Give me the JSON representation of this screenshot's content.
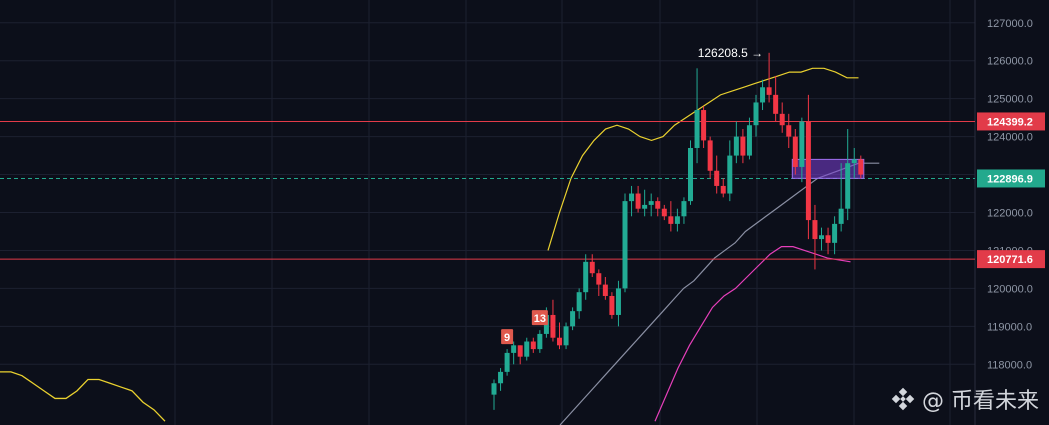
{
  "chart_data": {
    "type": "candlestick",
    "y_ticks": [
      118000,
      119000,
      120000,
      121000,
      122000,
      123000,
      124000,
      125000,
      126000,
      127000
    ],
    "y_tick_labels": [
      "118000.0",
      "119000.0",
      "120000.0",
      "121000.0",
      "122000.0",
      "123000.0",
      "124000.0",
      "125000.0",
      "126000.0",
      "127000.0"
    ],
    "ylim": [
      116400,
      127600
    ],
    "candles": [
      [
        117200,
        117600,
        116800,
        117500
      ],
      [
        117500,
        117900,
        117300,
        117800
      ],
      [
        117800,
        118400,
        117700,
        118300
      ],
      [
        118300,
        118600,
        118000,
        118500
      ],
      [
        118500,
        118500,
        118000,
        118200
      ],
      [
        118200,
        118700,
        118100,
        118600
      ],
      [
        118600,
        118700,
        118300,
        118400
      ],
      [
        118400,
        118900,
        118300,
        118800
      ],
      [
        118800,
        119500,
        118700,
        119300
      ],
      [
        119300,
        119700,
        118600,
        118700
      ],
      [
        118700,
        119100,
        118400,
        118500
      ],
      [
        118500,
        119100,
        118400,
        119000
      ],
      [
        119000,
        119500,
        118900,
        119400
      ],
      [
        119400,
        120000,
        119200,
        119900
      ],
      [
        119900,
        120900,
        119700,
        120700
      ],
      [
        120700,
        120900,
        120300,
        120400
      ],
      [
        120400,
        120500,
        119800,
        120100
      ],
      [
        120100,
        120300,
        119700,
        119800
      ],
      [
        119800,
        119900,
        119200,
        119300
      ],
      [
        119300,
        120200,
        119000,
        120000
      ],
      [
        120000,
        122500,
        119900,
        122300
      ],
      [
        122300,
        122700,
        121900,
        122500
      ],
      [
        122500,
        122700,
        122000,
        122100
      ],
      [
        122100,
        122600,
        121900,
        122200
      ],
      [
        122200,
        122500,
        121900,
        122300
      ],
      [
        122300,
        122400,
        121900,
        122100
      ],
      [
        122100,
        122200,
        121800,
        121900
      ],
      [
        121900,
        122300,
        121500,
        121700
      ],
      [
        121700,
        122100,
        121500,
        121900
      ],
      [
        121900,
        122400,
        121700,
        122300
      ],
      [
        122300,
        123900,
        122200,
        123700
      ],
      [
        123700,
        125800,
        123300,
        124700
      ],
      [
        124700,
        124800,
        123700,
        123900
      ],
      [
        123900,
        124000,
        122900,
        123100
      ],
      [
        123100,
        123500,
        122500,
        122700
      ],
      [
        122700,
        122900,
        122400,
        122500
      ],
      [
        122500,
        123900,
        122300,
        123500
      ],
      [
        123500,
        124400,
        123300,
        124000
      ],
      [
        124000,
        124200,
        123300,
        123500
      ],
      [
        123500,
        124500,
        123400,
        124300
      ],
      [
        124300,
        125100,
        124000,
        124900
      ],
      [
        124900,
        125500,
        124700,
        125300
      ],
      [
        125300,
        126208.5,
        124900,
        125100
      ],
      [
        125100,
        125600,
        124400,
        124600
      ],
      [
        124600,
        124900,
        124100,
        124300
      ],
      [
        124300,
        124600,
        123700,
        124000
      ],
      [
        124000,
        124200,
        123000,
        123200
      ],
      [
        123200,
        124500,
        122800,
        124400
      ],
      [
        124400,
        125100,
        121300,
        121800
      ],
      [
        121800,
        122200,
        120500,
        121300
      ],
      [
        121300,
        121600,
        121000,
        121400
      ],
      [
        121400,
        121600,
        120900,
        121200
      ],
      [
        121200,
        121900,
        120900,
        121700
      ],
      [
        121700,
        123300,
        121500,
        122100
      ],
      [
        122100,
        124200,
        121800,
        123300
      ],
      [
        123300,
        123700,
        122900,
        123400
      ],
      [
        123400,
        123500,
        122900,
        123000
      ]
    ],
    "bollinger_middle": [
      116400,
      116700,
      117000,
      117300,
      117600,
      117900,
      118200,
      118500,
      118800,
      119100,
      119400,
      119700,
      120000,
      120200,
      120500,
      120800,
      121000,
      121200,
      121500,
      121700,
      121900,
      122100,
      122300,
      122500,
      122700,
      122900,
      123000,
      123100,
      123200,
      123300,
      123300,
      123300
    ],
    "bollinger_upper": [
      121000,
      122000,
      122900,
      123500,
      123900,
      124200,
      124300,
      124200,
      124000,
      123900,
      124000,
      124300,
      124500,
      124700,
      124900,
      125100,
      125200,
      125300,
      125400,
      125500,
      125600,
      125700,
      125700,
      125800,
      125800,
      125700,
      125550,
      125550
    ],
    "bollinger_lower": [
      116500,
      117200,
      117900,
      118500,
      119000,
      119500,
      119800,
      120000,
      120300,
      120600,
      120900,
      121100,
      121100,
      121000,
      120900,
      120800,
      120750,
      120700
    ],
    "side_line": [
      117800,
      117800,
      117700,
      117500,
      117300,
      117100,
      117100,
      117300,
      117600,
      117600,
      117500,
      117400,
      117300,
      117000,
      116800,
      116500
    ],
    "horizontal_lines": [
      {
        "price": 124399.2,
        "label": "124399.2",
        "color": "#e23b49"
      },
      {
        "price": 120771.6,
        "label": "120771.6",
        "color": "#e23b49"
      }
    ],
    "last_price": {
      "price": 122896.9,
      "label": "122896.9",
      "color": "#23a98d"
    },
    "peak_annotation": {
      "label": "126208.5",
      "arrow": "→",
      "price": 126208.5,
      "candle_index": 42
    },
    "markers": [
      {
        "label": "9",
        "candle_index": 2
      },
      {
        "label": "13",
        "candle_index": 7
      }
    ],
    "zone": {
      "from": 122900,
      "to": 123400,
      "start_candle": 46,
      "end_candle": 56,
      "color": "#7b3fd6"
    },
    "grid": true,
    "colors": {
      "up": "#22ab94",
      "down": "#f23645",
      "upper_band": "#ead12f",
      "middle_band": "#8a8fa3",
      "lower_band": "#e63fba",
      "background": "#0c0f1a",
      "grid": "#1c2030"
    }
  },
  "watermark": {
    "text": "@ 币看未来",
    "logo": "diamond-logo-icon"
  }
}
